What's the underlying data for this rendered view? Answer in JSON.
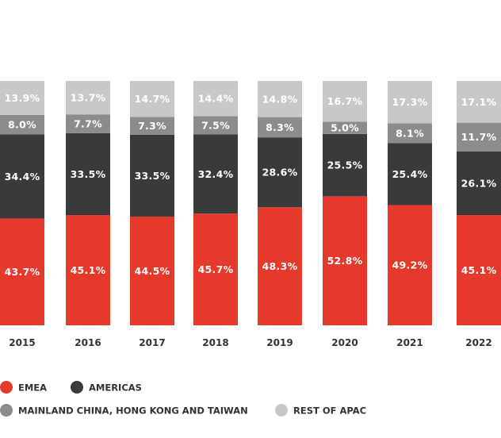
{
  "chart_data": {
    "type": "bar",
    "stacked": true,
    "categories": [
      "2015",
      "2016",
      "2017",
      "2018",
      "2019",
      "2020",
      "2021",
      "2022"
    ],
    "series": [
      {
        "name": "EMEA",
        "color": "#e5392b",
        "label_color": "#ffffff",
        "values": [
          43.7,
          45.1,
          44.5,
          45.7,
          48.3,
          52.8,
          49.2,
          45.1
        ]
      },
      {
        "name": "AMERICAS",
        "color": "#3a3a3a",
        "label_color": "#ffffff",
        "values": [
          34.4,
          33.5,
          33.5,
          32.4,
          28.6,
          25.5,
          25.4,
          26.1
        ]
      },
      {
        "name": "MAINLAND CHINA, HONG KONG AND TAIWAN",
        "color": "#8c8c8c",
        "label_color": "#ffffff",
        "values": [
          8.0,
          7.7,
          7.3,
          7.5,
          8.3,
          5.0,
          8.1,
          11.7
        ]
      },
      {
        "name": "REST OF APAC",
        "color": "#c8c8c8",
        "label_color": "#ffffff",
        "values": [
          13.9,
          13.7,
          14.7,
          14.4,
          14.8,
          16.7,
          17.3,
          17.1
        ]
      }
    ],
    "value_format": "{v}%",
    "ylim": [
      0,
      100
    ],
    "grid": false,
    "legend_position": "bottom"
  }
}
